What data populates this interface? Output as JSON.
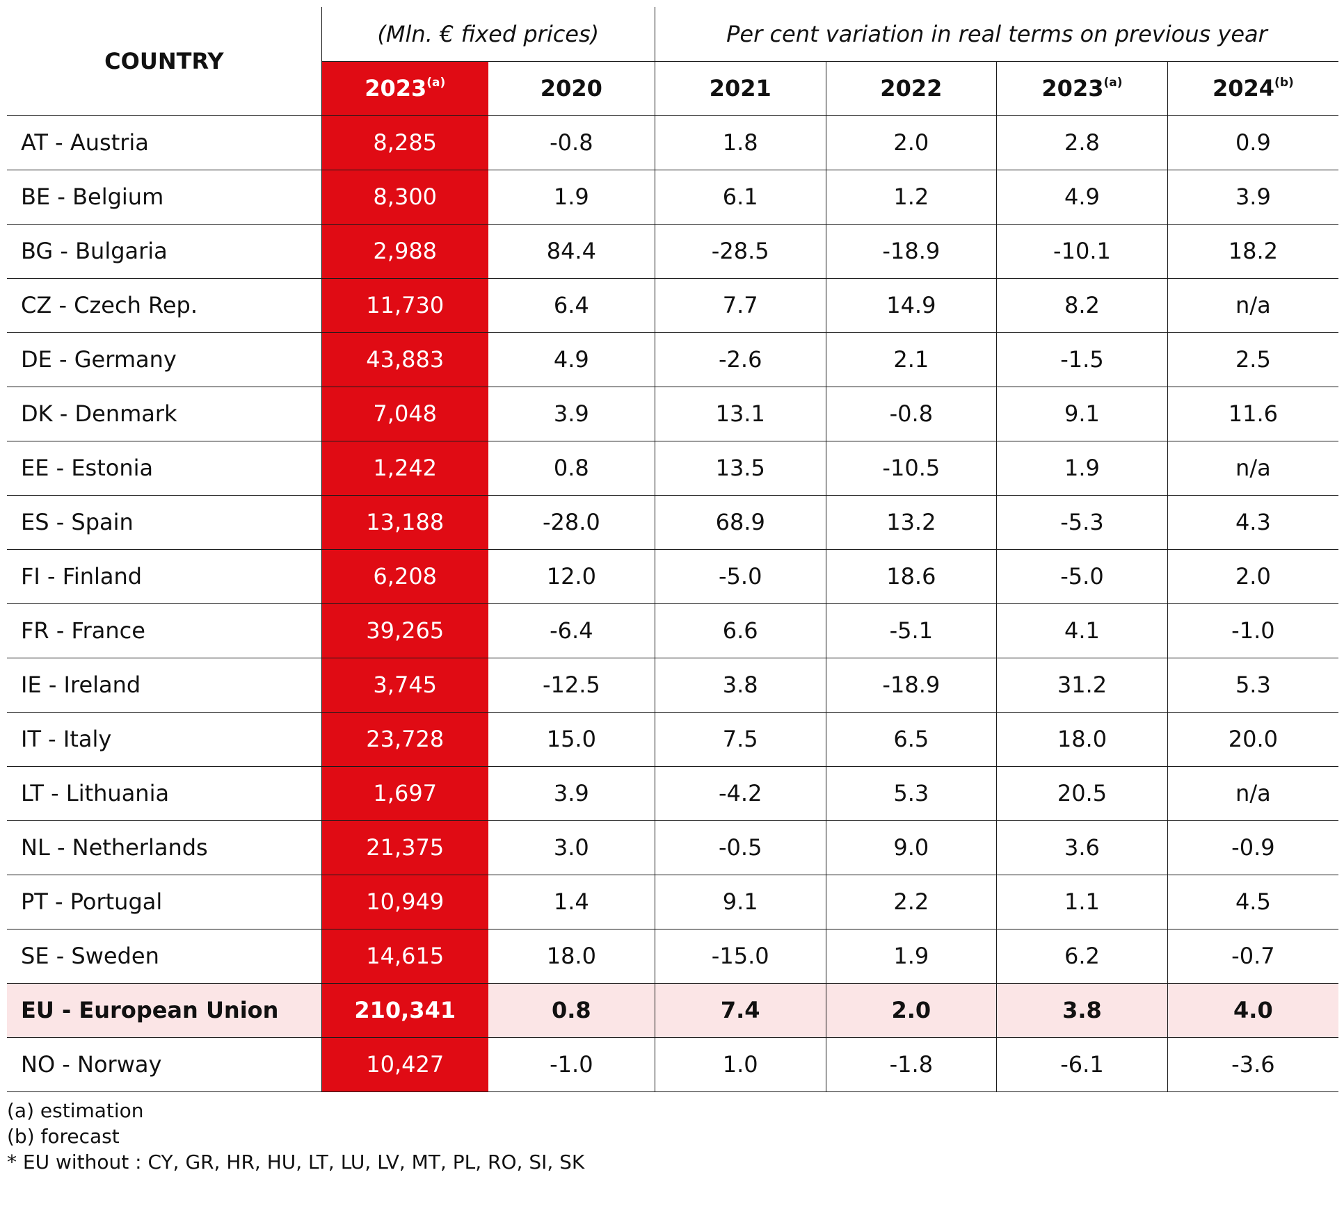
{
  "header": {
    "country_label": "COUNTRY",
    "abs_group_label": "(Mln. € fixed prices)",
    "var_group_label": "Per cent variation in real terms on previous year",
    "columns": [
      {
        "year": "2023",
        "note": "(a)"
      },
      {
        "year": "2020",
        "note": ""
      },
      {
        "year": "2021",
        "note": ""
      },
      {
        "year": "2022",
        "note": ""
      },
      {
        "year": "2023",
        "note": "(a)"
      },
      {
        "year": "2024",
        "note": "(b)"
      }
    ]
  },
  "rows": [
    {
      "country": "AT - Austria",
      "abs": "8,285",
      "v2020": "-0.8",
      "v2021": "1.8",
      "v2022": "2.0",
      "v2023": "2.8",
      "v2024": "0.9"
    },
    {
      "country": "BE - Belgium",
      "abs": "8,300",
      "v2020": "1.9",
      "v2021": "6.1",
      "v2022": "1.2",
      "v2023": "4.9",
      "v2024": "3.9"
    },
    {
      "country": "BG - Bulgaria",
      "abs": "2,988",
      "v2020": "84.4",
      "v2021": "-28.5",
      "v2022": "-18.9",
      "v2023": "-10.1",
      "v2024": "18.2"
    },
    {
      "country": "CZ - Czech Rep.",
      "abs": "11,730",
      "v2020": "6.4",
      "v2021": "7.7",
      "v2022": "14.9",
      "v2023": "8.2",
      "v2024": "n/a"
    },
    {
      "country": "DE - Germany",
      "abs": "43,883",
      "v2020": "4.9",
      "v2021": "-2.6",
      "v2022": "2.1",
      "v2023": "-1.5",
      "v2024": "2.5"
    },
    {
      "country": "DK - Denmark",
      "abs": "7,048",
      "v2020": "3.9",
      "v2021": "13.1",
      "v2022": "-0.8",
      "v2023": "9.1",
      "v2024": "11.6"
    },
    {
      "country": "EE - Estonia",
      "abs": "1,242",
      "v2020": "0.8",
      "v2021": "13.5",
      "v2022": "-10.5",
      "v2023": "1.9",
      "v2024": "n/a"
    },
    {
      "country": "ES - Spain",
      "abs": "13,188",
      "v2020": "-28.0",
      "v2021": "68.9",
      "v2022": "13.2",
      "v2023": "-5.3",
      "v2024": "4.3"
    },
    {
      "country": "FI - Finland",
      "abs": "6,208",
      "v2020": "12.0",
      "v2021": "-5.0",
      "v2022": "18.6",
      "v2023": "-5.0",
      "v2024": "2.0"
    },
    {
      "country": "FR - France",
      "abs": "39,265",
      "v2020": "-6.4",
      "v2021": "6.6",
      "v2022": "-5.1",
      "v2023": "4.1",
      "v2024": "-1.0"
    },
    {
      "country": "IE - Ireland",
      "abs": "3,745",
      "v2020": "-12.5",
      "v2021": "3.8",
      "v2022": "-18.9",
      "v2023": "31.2",
      "v2024": "5.3"
    },
    {
      "country": "IT - Italy",
      "abs": "23,728",
      "v2020": "15.0",
      "v2021": "7.5",
      "v2022": "6.5",
      "v2023": "18.0",
      "v2024": "20.0"
    },
    {
      "country": "LT - Lithuania",
      "abs": "1,697",
      "v2020": "3.9",
      "v2021": "-4.2",
      "v2022": "5.3",
      "v2023": "20.5",
      "v2024": "n/a"
    },
    {
      "country": "NL - Netherlands",
      "abs": "21,375",
      "v2020": "3.0",
      "v2021": "-0.5",
      "v2022": "9.0",
      "v2023": "3.6",
      "v2024": "-0.9"
    },
    {
      "country": "PT - Portugal",
      "abs": "10,949",
      "v2020": "1.4",
      "v2021": "9.1",
      "v2022": "2.2",
      "v2023": "1.1",
      "v2024": "4.5"
    },
    {
      "country": "SE - Sweden",
      "abs": "14,615",
      "v2020": "18.0",
      "v2021": "-15.0",
      "v2022": "1.9",
      "v2023": "6.2",
      "v2024": "-0.7"
    },
    {
      "country": "EU - European Union",
      "abs": "210,341",
      "v2020": "0.8",
      "v2021": "7.4",
      "v2022": "2.0",
      "v2023": "3.8",
      "v2024": "4.0"
    },
    {
      "country": "NO - Norway",
      "abs": "10,427",
      "v2020": "-1.0",
      "v2021": "1.0",
      "v2022": "-1.8",
      "v2023": "-6.1",
      "v2024": "-3.6"
    }
  ],
  "notes": [
    "(a) estimation",
    "(b) forecast",
    "* EU without : CY, GR, HR, HU, LT, LU, LV, MT, PL, RO, SI, SK"
  ],
  "colors": {
    "accent_red": "#e00b14",
    "eu_row_highlight": "#fbe5e6",
    "rule": "#1a1a1a"
  }
}
